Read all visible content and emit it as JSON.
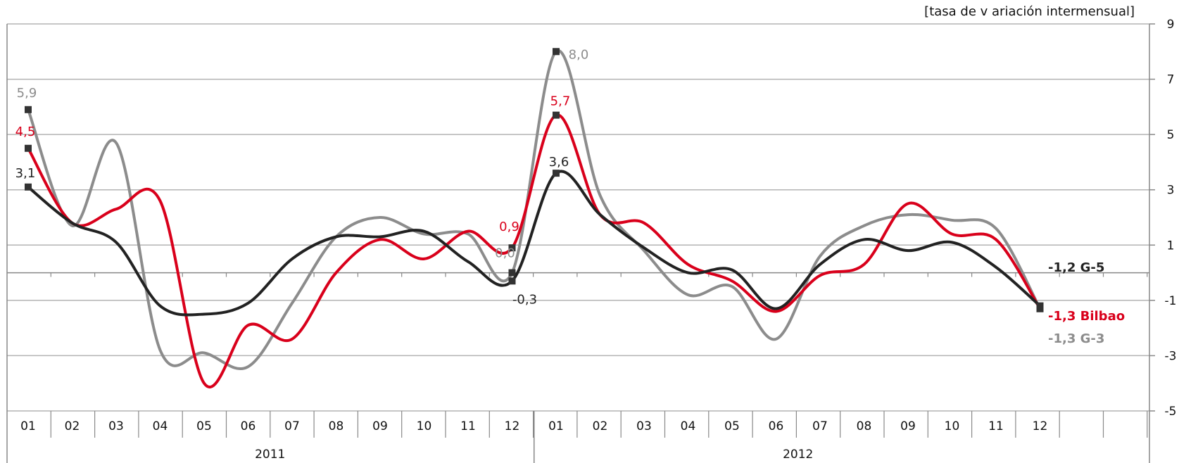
{
  "chart_data": {
    "type": "line",
    "unit_label": "[tasa de v ariación intermensual]",
    "ylim": [
      -5,
      9
    ],
    "yticks": [
      -5,
      -3,
      -1,
      1,
      3,
      5,
      7,
      9
    ],
    "categories": [
      "01",
      "02",
      "03",
      "04",
      "05",
      "06",
      "07",
      "08",
      "09",
      "10",
      "11",
      "12",
      "01",
      "02",
      "03",
      "04",
      "05",
      "06",
      "07",
      "08",
      "09",
      "10",
      "11",
      "12"
    ],
    "years": [
      {
        "label": "2011",
        "start": 0,
        "end": 11
      },
      {
        "label": "2012",
        "start": 12,
        "end": 23
      }
    ],
    "grid": "horizontal",
    "legend": "end-of-line labels",
    "series": [
      {
        "name": "G-3",
        "color": "#8c8c8c",
        "values": [
          5.9,
          1.7,
          4.7,
          -2.8,
          -2.9,
          -3.4,
          -1.1,
          1.3,
          2.0,
          1.4,
          1.4,
          0.0,
          8.0,
          2.8,
          0.8,
          -0.8,
          -0.5,
          -2.4,
          0.6,
          1.7,
          2.1,
          1.9,
          1.6,
          -1.3
        ]
      },
      {
        "name": "Bilbao",
        "color": "#d9001b",
        "values": [
          4.5,
          1.8,
          2.3,
          2.6,
          -4.0,
          -1.9,
          -2.4,
          0.0,
          1.2,
          0.5,
          1.5,
          0.9,
          5.7,
          2.1,
          1.8,
          0.3,
          -0.3,
          -1.4,
          -0.1,
          0.3,
          2.5,
          1.4,
          1.2,
          -1.3
        ]
      },
      {
        "name": "G-5",
        "color": "#222222",
        "values": [
          3.1,
          1.8,
          1.1,
          -1.2,
          -1.5,
          -1.1,
          0.5,
          1.3,
          1.3,
          1.5,
          0.4,
          -0.3,
          3.6,
          2.1,
          0.9,
          0.0,
          0.1,
          -1.3,
          0.3,
          1.2,
          0.8,
          1.1,
          0.2,
          -1.2
        ]
      }
    ],
    "data_labels": [
      {
        "series": 0,
        "index": 0,
        "text": "5,9"
      },
      {
        "series": 1,
        "index": 0,
        "text": "4,5"
      },
      {
        "series": 2,
        "index": 0,
        "text": "3,1"
      },
      {
        "series": 0,
        "index": 11,
        "text": "0,0"
      },
      {
        "series": 1,
        "index": 11,
        "text": "0,9"
      },
      {
        "series": 2,
        "index": 11,
        "text": "-0,3"
      },
      {
        "series": 0,
        "index": 12,
        "text": "8,0"
      },
      {
        "series": 1,
        "index": 12,
        "text": "5,7"
      },
      {
        "series": 2,
        "index": 12,
        "text": "3,6"
      }
    ],
    "end_labels": [
      {
        "series": 2,
        "value": "-1,2",
        "name": "G-5"
      },
      {
        "series": 1,
        "value": "-1,3",
        "name": "Bilbao"
      },
      {
        "series": 0,
        "value": "-1,3",
        "name": "G-3"
      }
    ]
  }
}
